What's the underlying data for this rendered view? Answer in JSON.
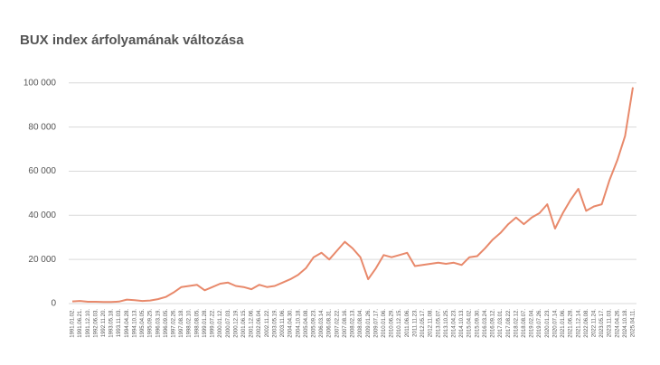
{
  "chart_data": {
    "type": "line",
    "title": "BUX index árfolyamának változása",
    "categories": [
      "1991.01.02.",
      "1991.06.21.",
      "1991.12.10.",
      "1992.06.03.",
      "1992.11.20.",
      "1993.05.18.",
      "1993.11.03.",
      "1994.04.28.",
      "1994.10.13.",
      "1995.04.05.",
      "1995.09.25.",
      "1996.03.19.",
      "1996.09.05.",
      "1997.02.26.",
      "1997.08.18.",
      "1998.02.10.",
      "1998.08.05.",
      "1999.01.28.",
      "1999.07.22.",
      "2000.01.12.",
      "2000.07.03.",
      "2000.12.19.",
      "2001.06.15.",
      "2001.12.06.",
      "2002.06.04.",
      "2002.11.22.",
      "2003.05.19.",
      "2003.11.06.",
      "2004.04.30.",
      "2004.10.18.",
      "2005.04.08.",
      "2005.09.23.",
      "2006.03.14.",
      "2006.08.31.",
      "2007.02.22.",
      "2007.08.16.",
      "2008.02.13.",
      "2008.08.04.",
      "2009.01.26.",
      "2009.07.17.",
      "2010.01.06.",
      "2010.06.29.",
      "2010.12.15.",
      "2011.06.06.",
      "2011.11.23.",
      "2012.05.17.",
      "2012.11.08.",
      "2013.05.07.",
      "2013.10.25.",
      "2014.04.23.",
      "2014.10.13.",
      "2015.04.02.",
      "2015.09.30.",
      "2016.03.24.",
      "2016.09.12.",
      "2017.03.01.",
      "2017.08.22.",
      "2018.02.12.",
      "2018.08.07.",
      "2019.02.04.",
      "2019.07.26.",
      "2020.01.23.",
      "2020.07.14.",
      "2021.01.06.",
      "2021.06.28.",
      "2021.12.14.",
      "2022.06.08.",
      "2022.11.24.",
      "2023.05.17.",
      "2023.11.03.",
      "2024.04.26.",
      "2024.10.18.",
      "2025.04.11."
    ],
    "values": [
      1000,
      1200,
      800,
      800,
      700,
      700,
      900,
      1800,
      1500,
      1200,
      1400,
      2000,
      3000,
      5000,
      7500,
      8000,
      8500,
      6000,
      7500,
      9000,
      9500,
      8000,
      7500,
      6500,
      8500,
      7500,
      8000,
      9500,
      11000,
      13000,
      16000,
      21000,
      23000,
      20000,
      24000,
      28000,
      25000,
      21000,
      11000,
      16000,
      22000,
      21000,
      22000,
      23000,
      17000,
      17500,
      18000,
      18500,
      18000,
      18500,
      17500,
      21000,
      21500,
      25000,
      29000,
      32000,
      36000,
      39000,
      36000,
      39000,
      41000,
      45000,
      34000,
      41000,
      47000,
      52000,
      42000,
      44000,
      45000,
      56000,
      65000,
      76000,
      98000
    ],
    "color": "#e8896b",
    "ylim": [
      0,
      104000
    ],
    "yticks": [
      0,
      {
        "value": 20000,
        "label": "20 000"
      },
      {
        "value": 40000,
        "label": "40 000"
      },
      {
        "value": 60000,
        "label": "60 000"
      },
      {
        "value": 80000,
        "label": "80 000"
      },
      {
        "value": 100000,
        "label": "100 000"
      }
    ],
    "grid": true
  }
}
